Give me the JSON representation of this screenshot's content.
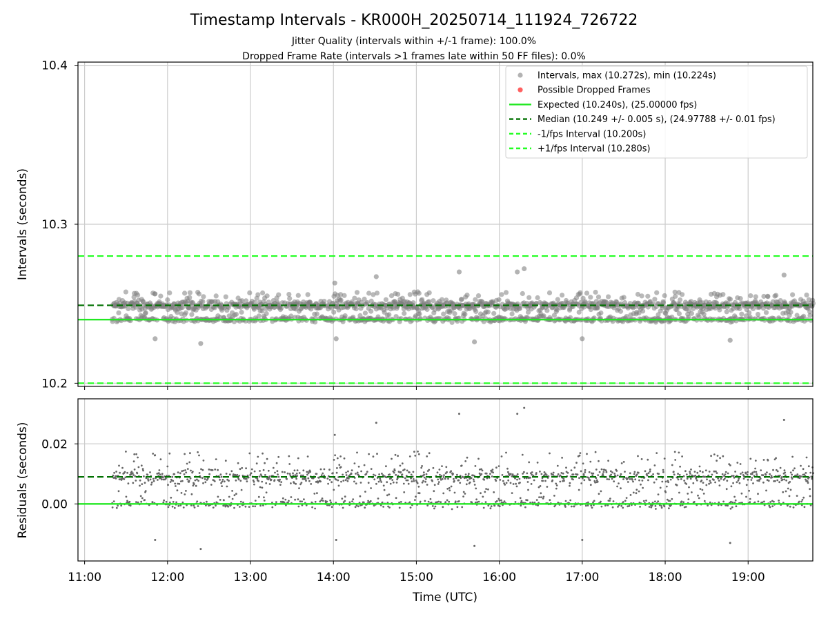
{
  "title": "Timestamp Intervals - KR000H_20250714_111924_726722",
  "subtitle_1": "Jitter Quality (intervals within +/-1 frame): 100.0%",
  "subtitle_2": "Dropped Frame Rate (intervals >1 frames late within 50 FF files): 0.0%",
  "colors": {
    "points": "#808080",
    "dropped": "#ff6060",
    "expected": "#22e822",
    "median": "#007000",
    "bounds": "#22ff22",
    "grid": "#cccccc"
  },
  "chart_data": [
    {
      "type": "scatter",
      "ylabel": "Intervals (seconds)",
      "ylim": [
        10.198,
        10.402
      ],
      "yticks": [
        "10.2",
        "10.3",
        "10.4"
      ],
      "ytick_values": [
        10.2,
        10.3,
        10.4
      ],
      "xlim_hours": [
        10.92,
        19.78
      ],
      "grid": true,
      "legend_position": "top-right",
      "legend": [
        "Intervals, max (10.272s), min (10.224s)",
        "Possible Dropped Frames",
        "Expected (10.240s), (25.00000 fps)",
        "Median (10.249 +/- 0.005 s), (24.97788 +/- 0.01 fps)",
        "-1/fps Interval (10.200s)",
        "+1/fps Interval (10.280s)"
      ],
      "reference_lines": {
        "expected": 10.24,
        "median": 10.249,
        "minus_one_fps": 10.2,
        "plus_one_fps": 10.28
      },
      "interval_stats": {
        "max": 10.272,
        "min": 10.224,
        "dropped_frames": 0
      },
      "series_x_range": [
        "11:20",
        "19:47"
      ],
      "notable_points": [
        {
          "x": "11:51",
          "y": 10.228
        },
        {
          "x": "12:24",
          "y": 10.225
        },
        {
          "x": "14:01",
          "y": 10.263
        },
        {
          "x": "14:02",
          "y": 10.228
        },
        {
          "x": "14:31",
          "y": 10.267
        },
        {
          "x": "15:31",
          "y": 10.27
        },
        {
          "x": "15:42",
          "y": 10.226
        },
        {
          "x": "16:13",
          "y": 10.27
        },
        {
          "x": "16:18",
          "y": 10.272
        },
        {
          "x": "17:00",
          "y": 10.228
        },
        {
          "x": "18:47",
          "y": 10.227
        },
        {
          "x": "19:26",
          "y": 10.268
        }
      ]
    },
    {
      "type": "scatter",
      "xlabel": "Time (UTC)",
      "ylabel": "Residuals (seconds)",
      "ylim": [
        -0.019,
        0.035
      ],
      "yticks": [
        "0.00",
        "0.02"
      ],
      "ytick_values": [
        0.0,
        0.02
      ],
      "xticks": [
        "11:00",
        "12:00",
        "13:00",
        "14:00",
        "15:00",
        "16:00",
        "17:00",
        "18:00",
        "19:00"
      ],
      "xlim_hours": [
        10.92,
        19.78
      ],
      "grid": true,
      "reference_lines": {
        "expected": 0.0,
        "median": 0.009
      },
      "residual_range": [
        -0.016,
        0.032
      ]
    }
  ]
}
